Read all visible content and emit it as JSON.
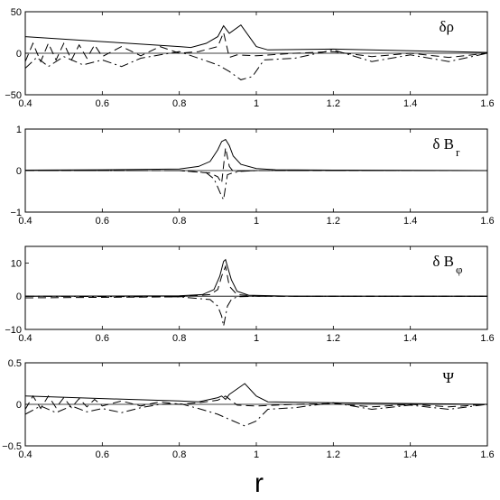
{
  "chart_data": [
    {
      "type": "line",
      "label_main": "δρ",
      "label_sub": "",
      "xlim": [
        0.4,
        1.6
      ],
      "ylim": [
        -50,
        50
      ],
      "xticks": [
        "0.4",
        "0.6",
        "0.8",
        "1",
        "1.2",
        "1.4",
        "1.6"
      ],
      "yticks": [
        "50",
        "0",
        "−50"
      ],
      "ytick_values": [
        50,
        0,
        -50
      ],
      "series": [
        {
          "style": "solid",
          "x": [
            0.4,
            0.6,
            0.8,
            0.83,
            0.87,
            0.9,
            0.915,
            0.93,
            0.96,
            1.0,
            1.03,
            1.2,
            1.4,
            1.6
          ],
          "y": [
            20,
            14,
            8,
            7,
            12,
            20,
            33,
            24,
            34,
            8,
            4,
            5,
            3,
            1
          ]
        },
        {
          "style": "dashed",
          "x": [
            0.4,
            0.42,
            0.44,
            0.46,
            0.48,
            0.5,
            0.52,
            0.54,
            0.56,
            0.58,
            0.6,
            0.65,
            0.7,
            0.75,
            0.8,
            0.85,
            0.9,
            0.915,
            0.93,
            0.95,
            1.0,
            1.1,
            1.2,
            1.3,
            1.4,
            1.5,
            1.6
          ],
          "y": [
            -10,
            12,
            -10,
            12,
            -8,
            12,
            -8,
            10,
            -6,
            10,
            -4,
            8,
            -3,
            8,
            0,
            2,
            8,
            25,
            -5,
            -2,
            -3,
            0,
            2,
            -4,
            0,
            -5,
            0
          ]
        },
        {
          "style": "dashdot",
          "x": [
            0.4,
            0.43,
            0.46,
            0.5,
            0.55,
            0.6,
            0.65,
            0.7,
            0.75,
            0.8,
            0.85,
            0.9,
            0.93,
            0.96,
            0.99,
            1.02,
            1.1,
            1.2,
            1.3,
            1.4,
            1.5,
            1.6
          ],
          "y": [
            -18,
            -5,
            -16,
            -4,
            -14,
            -8,
            -16,
            -6,
            -2,
            2,
            -6,
            -14,
            -22,
            -32,
            -28,
            -8,
            -6,
            4,
            -10,
            -2,
            -10,
            0
          ]
        }
      ]
    },
    {
      "type": "line",
      "label_main": "δ B",
      "label_sub": "r",
      "xlim": [
        0.4,
        1.6
      ],
      "ylim": [
        -1,
        1
      ],
      "xticks": [
        "0.4",
        "0.6",
        "0.8",
        "1",
        "1.2",
        "1.4",
        "1.6"
      ],
      "yticks": [
        "1",
        "0",
        "−1"
      ],
      "ytick_values": [
        1,
        0,
        -1
      ],
      "series": [
        {
          "style": "solid",
          "x": [
            0.4,
            0.6,
            0.8,
            0.85,
            0.88,
            0.9,
            0.91,
            0.92,
            0.93,
            0.94,
            0.96,
            1.0,
            1.05,
            1.2,
            1.6
          ],
          "y": [
            0.01,
            0.02,
            0.04,
            0.1,
            0.22,
            0.5,
            0.7,
            0.75,
            0.6,
            0.35,
            0.15,
            0.05,
            0.02,
            0.01,
            0.0
          ]
        },
        {
          "style": "dashed",
          "x": [
            0.4,
            0.8,
            0.88,
            0.9,
            0.91,
            0.92,
            0.93,
            0.94,
            0.96,
            1.0,
            1.6
          ],
          "y": [
            0.0,
            0.0,
            -0.06,
            -0.15,
            -0.3,
            0.55,
            0.1,
            -0.02,
            -0.01,
            0.0,
            0.0
          ]
        },
        {
          "style": "dashdot",
          "x": [
            0.4,
            0.8,
            0.87,
            0.89,
            0.9,
            0.91,
            0.915,
            0.925,
            0.94,
            0.96,
            1.0,
            1.6
          ],
          "y": [
            0.0,
            0.0,
            -0.05,
            -0.2,
            -0.4,
            -0.62,
            -0.7,
            -0.1,
            -0.05,
            -0.02,
            0.0,
            0.0
          ]
        }
      ]
    },
    {
      "type": "line",
      "label_main": "δ B",
      "label_sub": "φ",
      "xlim": [
        0.4,
        1.6
      ],
      "ylim": [
        -10,
        15
      ],
      "xticks": [
        "0.4",
        "0.6",
        "0.8",
        "1",
        "1.2",
        "1.4",
        "1.6"
      ],
      "yticks": [
        "10",
        "0",
        "−10"
      ],
      "ytick_values": [
        10,
        0,
        -10
      ],
      "series": [
        {
          "style": "solid",
          "x": [
            0.4,
            0.8,
            0.86,
            0.89,
            0.905,
            0.915,
            0.92,
            0.925,
            0.935,
            0.95,
            0.98,
            1.1,
            1.6
          ],
          "y": [
            0.0,
            0.1,
            0.5,
            2,
            6,
            10.5,
            11,
            9,
            5,
            1.5,
            0.3,
            0.0,
            0.0
          ]
        },
        {
          "style": "dashed",
          "x": [
            0.4,
            0.8,
            0.88,
            0.9,
            0.91,
            0.92,
            0.93,
            0.95,
            1.0,
            1.6
          ],
          "y": [
            -0.5,
            -0.2,
            0.5,
            2,
            6,
            9,
            3,
            0.5,
            0.0,
            0.0
          ]
        },
        {
          "style": "dashdot",
          "x": [
            0.4,
            0.8,
            0.88,
            0.9,
            0.91,
            0.915,
            0.925,
            0.935,
            0.95,
            1.0,
            1.6
          ],
          "y": [
            0.0,
            -0.2,
            -1,
            -3,
            -6,
            -9,
            -3,
            -1,
            -0.2,
            0.0,
            0.0
          ]
        }
      ]
    },
    {
      "type": "line",
      "label_main": "Ψ",
      "label_sub": "",
      "xlim": [
        0.4,
        1.6
      ],
      "ylim": [
        -0.5,
        0.5
      ],
      "xticks": [
        "0.4",
        "0.6",
        "0.8",
        "1",
        "1.2",
        "1.4",
        "1.6"
      ],
      "yticks": [
        "0.5",
        "0",
        "−0.5"
      ],
      "ytick_values": [
        0.5,
        0,
        -0.5
      ],
      "series": [
        {
          "style": "solid",
          "x": [
            0.4,
            0.6,
            0.8,
            0.85,
            0.9,
            0.91,
            0.92,
            0.93,
            0.97,
            1.0,
            1.03,
            1.2,
            1.4,
            1.6
          ],
          "y": [
            0.1,
            0.07,
            0.04,
            0.03,
            0.08,
            0.1,
            0.06,
            0.12,
            0.25,
            0.1,
            0.03,
            0.02,
            0.01,
            0.0
          ]
        },
        {
          "style": "dashed",
          "x": [
            0.4,
            0.42,
            0.44,
            0.46,
            0.48,
            0.5,
            0.52,
            0.54,
            0.56,
            0.58,
            0.6,
            0.65,
            0.7,
            0.75,
            0.8,
            0.85,
            0.9,
            0.92,
            0.95,
            1.0,
            1.1,
            1.2,
            1.3,
            1.4,
            1.5,
            1.6
          ],
          "y": [
            -0.06,
            0.1,
            -0.05,
            0.1,
            -0.04,
            0.08,
            -0.04,
            0.07,
            -0.03,
            0.06,
            -0.02,
            0.04,
            -0.02,
            0.03,
            0.0,
            0.02,
            0.05,
            0.1,
            -0.01,
            -0.02,
            0.0,
            0.01,
            -0.03,
            0.0,
            -0.03,
            0.0
          ]
        },
        {
          "style": "dashdot",
          "x": [
            0.4,
            0.44,
            0.48,
            0.52,
            0.56,
            0.6,
            0.65,
            0.7,
            0.75,
            0.8,
            0.85,
            0.9,
            0.93,
            0.97,
            1.0,
            1.03,
            1.1,
            1.2,
            1.3,
            1.4,
            1.5,
            1.6
          ],
          "y": [
            -0.12,
            -0.02,
            -0.1,
            -0.02,
            -0.09,
            -0.05,
            -0.1,
            -0.04,
            0.0,
            0.01,
            -0.05,
            -0.12,
            -0.18,
            -0.26,
            -0.2,
            -0.06,
            -0.04,
            0.02,
            -0.06,
            -0.01,
            -0.06,
            0.0
          ]
        }
      ]
    }
  ],
  "xlabel": "r"
}
